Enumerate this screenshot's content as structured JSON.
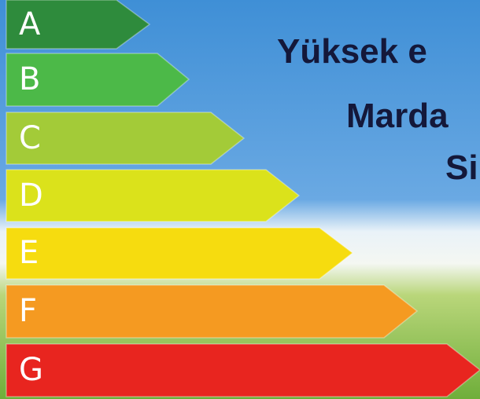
{
  "ratings": [
    "A",
    "B",
    "C",
    "D",
    "E",
    "F",
    "G"
  ],
  "heading": {
    "lines": [
      "Yüksek e",
      "Marda",
      "Si"
    ]
  }
}
